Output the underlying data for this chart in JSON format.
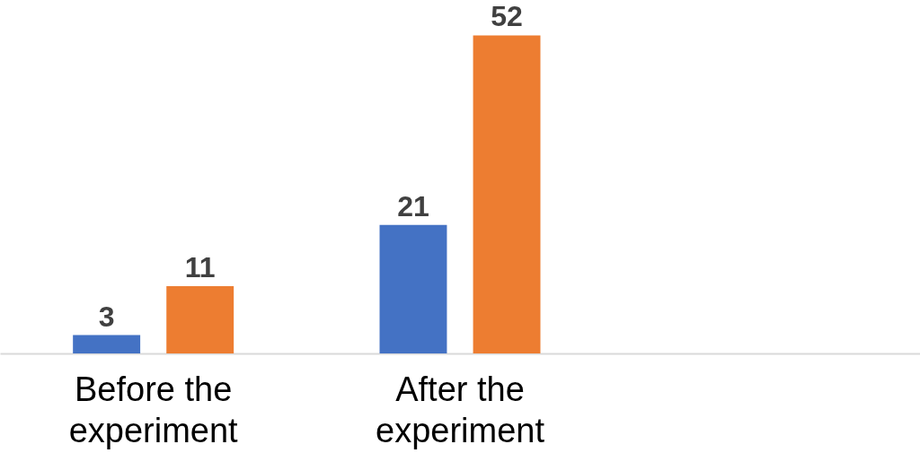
{
  "chart_data": {
    "type": "bar",
    "categories": [
      "Before the experiment",
      "After the experiment",
      null
    ],
    "series": [
      {
        "color": "#4472c4",
        "values": [
          3,
          21,
          null
        ]
      },
      {
        "color": "#ed7d31",
        "values": [
          11,
          52,
          null
        ]
      }
    ],
    "data_labels": true,
    "legend": false,
    "grid": false
  }
}
